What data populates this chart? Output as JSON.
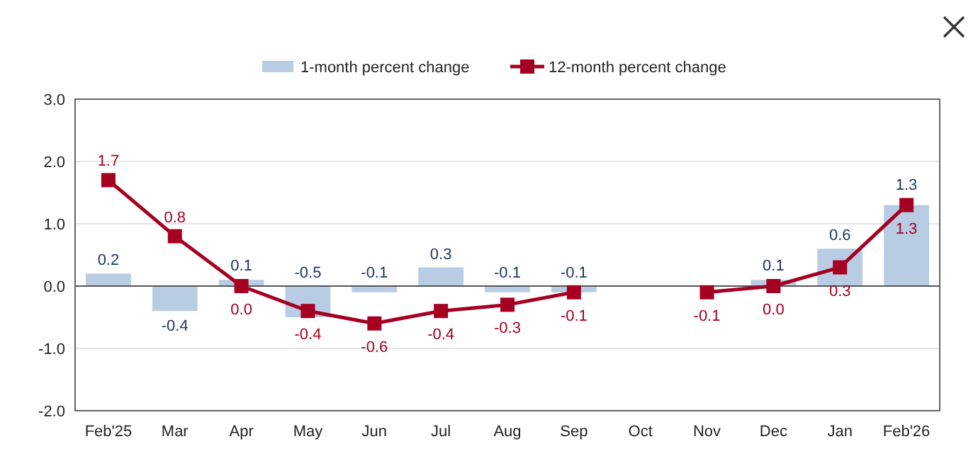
{
  "chart_data": {
    "type": "bar",
    "categories": [
      "Feb'25",
      "Mar",
      "Apr",
      "May",
      "Jun",
      "Jul",
      "Aug",
      "Sep",
      "Oct",
      "Nov",
      "Dec",
      "Jan",
      "Feb'26"
    ],
    "series": [
      {
        "name": "1-month percent change",
        "color": "#b8cce4",
        "values": [
          0.2,
          -0.4,
          0.1,
          -0.5,
          -0.1,
          0.3,
          -0.1,
          -0.1,
          null,
          null,
          0.1,
          0.6,
          1.3
        ],
        "value_labels": [
          "0.2",
          "-0.4",
          "0.1",
          "-0.5",
          "-0.1",
          "0.3",
          "-0.1",
          "-0.1",
          null,
          null,
          "0.1",
          "0.6",
          "1.3"
        ]
      },
      {
        "name": "12-month percent change",
        "type": "line",
        "color": "#a50021",
        "marker": "square",
        "values": [
          1.7,
          0.8,
          0.0,
          -0.4,
          -0.6,
          -0.4,
          -0.3,
          -0.1,
          null,
          -0.1,
          0.0,
          0.3,
          1.3
        ],
        "value_labels": [
          "1.7",
          "0.8",
          "0.0",
          "-0.4",
          "-0.6",
          "-0.4",
          "-0.3",
          "-0.1",
          null,
          "-0.1",
          "0.0",
          "0.3",
          "1.3"
        ]
      }
    ],
    "ylim": [
      -2,
      3
    ],
    "yticks": [
      {
        "value": -2,
        "label": "-2.0"
      },
      {
        "value": -1,
        "label": "-1.0"
      },
      {
        "value": 0,
        "label": "0.0"
      },
      {
        "value": 1,
        "label": "1.0"
      },
      {
        "value": 2,
        "label": "2.0"
      },
      {
        "value": 3,
        "label": "3.0"
      }
    ],
    "grid": "y",
    "legend": "top"
  }
}
